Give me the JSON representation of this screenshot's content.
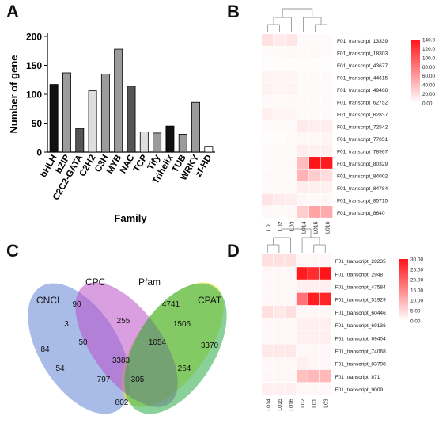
{
  "panels": {
    "a": "A",
    "b": "B",
    "c": "C",
    "d": "D"
  },
  "chart_data": [
    {
      "type": "bar",
      "ylabel": "Number of  gene",
      "xlabel": "Family",
      "ylim": [
        0,
        200
      ],
      "yticks": [
        "0",
        "50",
        "100",
        "150",
        "200"
      ],
      "categories": [
        "bHLH",
        "bZIP",
        "C2C2-GATA",
        "C2H2",
        "C3H",
        "MYB",
        "NAC",
        "TCP",
        "Tify",
        "Trihelix",
        "TUB",
        "WRKY",
        "zf-HD"
      ],
      "values": [
        117,
        137,
        41,
        106,
        135,
        178,
        114,
        35,
        33,
        45,
        31,
        86,
        10
      ],
      "colors": [
        "#111111",
        "#9b9b9b",
        "#555555",
        "#dedede",
        "#9b9b9b",
        "#9b9b9b",
        "#555555",
        "#dedede",
        "#9b9b9b",
        "#111111",
        "#9b9b9b",
        "#9b9b9b",
        "#ffffff"
      ]
    },
    {
      "type": "heatmap",
      "columns": [
        "L01",
        "L02",
        "L03",
        "L014",
        "L015",
        "L016"
      ],
      "rows": [
        "F01_transcript_13339",
        "F01_transcript_18303",
        "F01_transcript_43677",
        "F01_transcript_44615",
        "F01_transcript_49468",
        "F01_transcript_62752",
        "F01_transcript_62837",
        "F01_transcript_72542",
        "F01_transcript_77051",
        "F01_transcript_78967",
        "F01_transcript_80329",
        "F01_transcript_84002",
        "F01_transcript_84784",
        "F01_transcript_85715",
        "F01_transcript_8640"
      ],
      "values": [
        [
          18,
          12,
          15,
          3,
          3,
          3
        ],
        [
          3,
          3,
          4,
          3,
          4,
          3
        ],
        [
          2,
          2,
          2,
          2,
          2,
          2
        ],
        [
          7,
          6,
          6,
          3,
          3,
          3
        ],
        [
          8,
          6,
          7,
          3,
          3,
          3
        ],
        [
          4,
          4,
          4,
          3,
          3,
          3
        ],
        [
          9,
          6,
          6,
          3,
          3,
          3
        ],
        [
          3,
          3,
          3,
          12,
          10,
          10
        ],
        [
          2,
          2,
          3,
          5,
          5,
          6
        ],
        [
          3,
          3,
          3,
          11,
          9,
          9
        ],
        [
          3,
          3,
          4,
          40,
          140,
          135
        ],
        [
          4,
          3,
          4,
          45,
          30,
          20
        ],
        [
          3,
          3,
          3,
          10,
          9,
          9
        ],
        [
          16,
          12,
          10,
          5,
          4,
          4
        ],
        [
          4,
          3,
          4,
          30,
          55,
          50
        ]
      ],
      "colorbar": {
        "min": 0,
        "max": 140,
        "ticks": [
          "140.00",
          "120.00",
          "100.00",
          "80.00",
          "60.00",
          "40.00",
          "20.00",
          "0.00"
        ]
      }
    },
    {
      "type": "venn",
      "sets": [
        "CNCI",
        "CPC",
        "Pfam",
        "CPAT"
      ],
      "regions": {
        "CNCI_only": "84",
        "CPC_only": "90",
        "Pfam_only": "4741",
        "CPAT_only": "3370",
        "CNCI_CPC": "3",
        "CPC_Pfam": "255",
        "Pfam_CPAT": "1506",
        "CNCI_CPC_Pfam": "50",
        "CPC_Pfam_CPAT": "1054",
        "all_four": "3383",
        "CNCI_Pfam": "54",
        "CPC_CPAT": "264",
        "CNCI_Pfam_CPAT": "797",
        "CNCI_CPC_CPAT": "305",
        "CNCI_CPAT": "802"
      }
    },
    {
      "type": "heatmap",
      "columns": [
        "L014",
        "L015",
        "L016",
        "L02",
        "L01",
        "L03"
      ],
      "rows": [
        "F01_transcript_28235",
        "F01_transcript_2948",
        "F01_transcript_47584",
        "F01_transcript_51929",
        "F01_transcript_60446",
        "F01_transcript_69136",
        "F01_transcript_69404",
        "F01_transcript_74068",
        "F01_transcript_83798",
        "F01_transcript_871",
        "F01_transcript_9009"
      ],
      "values": [
        [
          4,
          4,
          4,
          1,
          1,
          1
        ],
        [
          1,
          1,
          1,
          29,
          27,
          30
        ],
        [
          1,
          1,
          1,
          2,
          2,
          2
        ],
        [
          1,
          1,
          1,
          18,
          29,
          28
        ],
        [
          4,
          3,
          4,
          1,
          1,
          1
        ],
        [
          1,
          1,
          1,
          2,
          2,
          2
        ],
        [
          1,
          1,
          1,
          2,
          2,
          2
        ],
        [
          3,
          3,
          3,
          1,
          1,
          1
        ],
        [
          1,
          1,
          1,
          2,
          1,
          1
        ],
        [
          1,
          1,
          1,
          8,
          9,
          9
        ],
        [
          2,
          2,
          2,
          1,
          1,
          1
        ]
      ],
      "colorbar": {
        "min": 0,
        "max": 30,
        "ticks": [
          "30.00",
          "25.00",
          "20.00",
          "15.00",
          "10.00",
          "5.00",
          "0.00"
        ]
      }
    }
  ]
}
